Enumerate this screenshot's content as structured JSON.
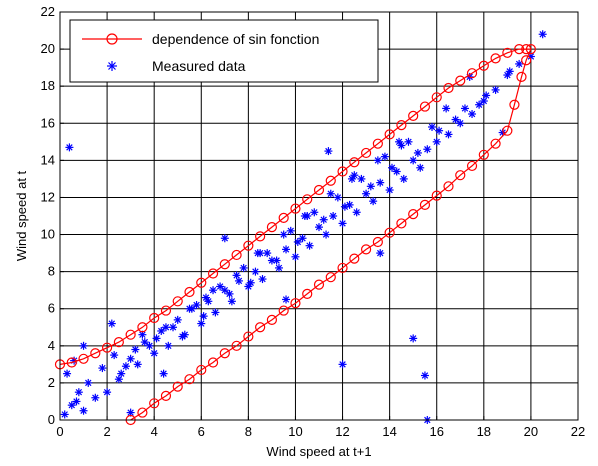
{
  "chart_data": {
    "type": "scatter",
    "title": "",
    "xlabel": "Wind speed at t+1",
    "ylabel": "Wind speed at t",
    "xlim": [
      0,
      22
    ],
    "ylim": [
      0,
      22
    ],
    "x_ticks": [
      "0",
      "2",
      "4",
      "6",
      "8",
      "10",
      "12",
      "14",
      "16",
      "18",
      "20",
      "22"
    ],
    "y_ticks": [
      "0",
      "2",
      "4",
      "6",
      "8",
      "10",
      "12",
      "14",
      "16",
      "18",
      "20",
      "22"
    ],
    "grid": true,
    "legend_position": "top-left",
    "series": [
      {
        "name": "dependence of sin fonction",
        "kind": "line-with-circle-markers",
        "color": "#ff0000",
        "x": [
          3.0,
          3.5,
          4.0,
          4.5,
          5.0,
          5.5,
          6.0,
          6.5,
          7.0,
          7.5,
          8.0,
          8.5,
          9.0,
          9.5,
          10.0,
          10.5,
          11.0,
          11.5,
          12.0,
          12.5,
          13.0,
          13.5,
          14.0,
          14.5,
          15.0,
          15.5,
          16.0,
          16.5,
          17.0,
          17.5,
          18.0,
          18.5,
          19.0,
          19.3,
          19.6,
          19.8,
          20.0,
          19.8,
          19.5,
          19.0,
          18.5,
          18.0,
          17.5,
          17.0,
          16.5,
          16.0,
          15.5,
          15.0,
          14.5,
          14.0,
          13.5,
          13.0,
          12.5,
          12.0,
          11.5,
          11.0,
          10.5,
          10.0,
          9.5,
          9.0,
          8.5,
          8.0,
          7.5,
          7.0,
          6.5,
          6.0,
          5.5,
          5.0,
          4.5,
          4.0,
          3.5,
          3.0,
          2.5,
          2.0,
          1.5,
          1.0,
          0.5,
          0.0
        ],
        "y": [
          0.0,
          0.4,
          0.9,
          1.3,
          1.8,
          2.2,
          2.7,
          3.1,
          3.6,
          4.0,
          4.5,
          5.0,
          5.4,
          5.9,
          6.3,
          6.8,
          7.3,
          7.7,
          8.2,
          8.7,
          9.2,
          9.6,
          10.1,
          10.6,
          11.1,
          11.6,
          12.1,
          12.6,
          13.2,
          13.7,
          14.3,
          14.9,
          15.6,
          17.0,
          18.5,
          19.4,
          20.0,
          20.0,
          20.0,
          19.8,
          19.5,
          19.1,
          18.7,
          18.3,
          17.9,
          17.4,
          16.9,
          16.4,
          15.9,
          15.4,
          14.9,
          14.4,
          13.9,
          13.4,
          12.9,
          12.4,
          11.9,
          11.4,
          10.9,
          10.4,
          9.9,
          9.4,
          8.9,
          8.4,
          7.9,
          7.4,
          6.9,
          6.4,
          5.9,
          5.5,
          5.0,
          4.6,
          4.2,
          3.9,
          3.6,
          3.3,
          3.1,
          3.0
        ]
      },
      {
        "name": "Measured data",
        "kind": "scatter-star",
        "color": "#0000ff",
        "x": [
          0.2,
          0.5,
          0.8,
          1.0,
          1.2,
          1.5,
          0.3,
          0.6,
          1.8,
          2.0,
          2.3,
          2.6,
          3.0,
          3.3,
          3.6,
          4.0,
          4.3,
          4.6,
          5.0,
          5.3,
          5.6,
          6.0,
          6.3,
          6.6,
          7.0,
          7.3,
          7.6,
          8.0,
          8.3,
          8.6,
          9.0,
          9.3,
          9.6,
          10.0,
          10.3,
          10.6,
          11.0,
          11.3,
          11.6,
          12.0,
          12.3,
          12.6,
          13.0,
          13.3,
          13.6,
          14.0,
          14.3,
          14.6,
          15.0,
          15.3,
          15.6,
          16.0,
          16.5,
          17.0,
          17.5,
          18.0,
          18.5,
          19.0,
          19.5,
          20.0,
          2.5,
          3.2,
          4.1,
          5.2,
          6.1,
          7.2,
          8.1,
          9.2,
          10.1,
          11.2,
          12.1,
          13.2,
          14.1,
          15.2,
          16.1,
          17.2,
          18.1,
          19.1,
          2.8,
          3.8,
          4.8,
          5.8,
          6.8,
          7.8,
          8.8,
          9.8,
          10.8,
          11.8,
          12.8,
          13.8,
          14.8,
          15.8,
          16.8,
          17.8,
          4.5,
          5.5,
          6.5,
          7.5,
          8.5,
          9.5,
          10.5,
          11.5,
          12.5,
          13.5,
          14.5,
          3.5,
          6.2,
          8.4,
          10.4,
          12.4,
          14.4,
          16.4,
          1.0,
          0.4,
          3.0,
          15.0,
          15.6,
          15.5,
          12.0,
          20.5,
          0.7,
          2.2,
          4.4,
          7.0,
          9.6,
          11.4,
          13.6,
          17.4,
          18.8
        ],
        "y": [
          0.3,
          0.8,
          1.5,
          0.5,
          2.0,
          1.2,
          2.5,
          3.2,
          2.8,
          1.5,
          3.5,
          2.5,
          3.3,
          3.0,
          4.2,
          3.6,
          4.8,
          4.0,
          5.4,
          4.6,
          6.0,
          5.2,
          6.4,
          5.8,
          7.0,
          6.4,
          7.5,
          7.2,
          8.0,
          7.6,
          8.6,
          8.2,
          9.2,
          8.8,
          9.8,
          9.4,
          10.4,
          10.0,
          11.0,
          10.6,
          11.6,
          11.2,
          12.2,
          11.8,
          12.8,
          12.4,
          13.4,
          13.0,
          14.0,
          13.6,
          14.6,
          15.0,
          15.4,
          16.0,
          16.5,
          17.2,
          17.8,
          18.6,
          19.2,
          19.6,
          2.2,
          3.8,
          4.4,
          4.5,
          5.6,
          6.8,
          7.4,
          8.6,
          9.6,
          10.8,
          11.5,
          12.6,
          13.6,
          14.4,
          15.6,
          16.8,
          17.5,
          18.8,
          2.9,
          4.0,
          5.0,
          6.2,
          7.2,
          8.2,
          9.0,
          10.2,
          11.2,
          12.0,
          13.0,
          14.2,
          15.0,
          15.8,
          16.2,
          17.0,
          5.0,
          6.0,
          7.0,
          7.8,
          9.0,
          10.0,
          11.0,
          12.2,
          13.2,
          14.0,
          14.8,
          4.6,
          6.6,
          9.0,
          11.0,
          13.0,
          15.0,
          16.8,
          4.0,
          14.7,
          0.4,
          4.4,
          0.0,
          2.4,
          3.0,
          20.8,
          1.0,
          5.2,
          2.5,
          9.8,
          6.5,
          14.5,
          9.0,
          18.5,
          15.5
        ]
      }
    ]
  }
}
